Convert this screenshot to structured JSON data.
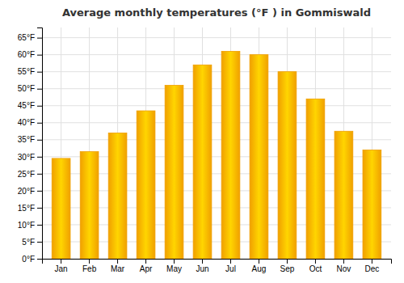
{
  "chart_data": {
    "type": "bar",
    "title": "Average monthly temperatures (°F ) in Gommiswald",
    "categories": [
      "Jan",
      "Feb",
      "Mar",
      "Apr",
      "May",
      "Jun",
      "Jul",
      "Aug",
      "Sep",
      "Oct",
      "Nov",
      "Dec"
    ],
    "values": [
      29.5,
      31.5,
      37.0,
      43.5,
      51.0,
      57.0,
      61.0,
      60.0,
      55.0,
      47.0,
      37.5,
      32.0
    ],
    "color": "#F0A000",
    "ylim": [
      0,
      68
    ],
    "yticks": [
      {
        "value": 0,
        "label": "0°F"
      },
      {
        "value": 5,
        "label": "5°F"
      },
      {
        "value": 10,
        "label": "10°F"
      },
      {
        "value": 15,
        "label": "15°F"
      },
      {
        "value": 20,
        "label": "20°F"
      },
      {
        "value": 25,
        "label": "25°F"
      },
      {
        "value": 30,
        "label": "30°F"
      },
      {
        "value": 35,
        "label": "35°F"
      },
      {
        "value": 40,
        "label": "40°F"
      },
      {
        "value": 45,
        "label": "45°F"
      },
      {
        "value": 50,
        "label": "50°F"
      },
      {
        "value": 55,
        "label": "55°F"
      },
      {
        "value": 60,
        "label": "60°F"
      },
      {
        "value": 65,
        "label": "65°F"
      }
    ],
    "grid": true
  }
}
